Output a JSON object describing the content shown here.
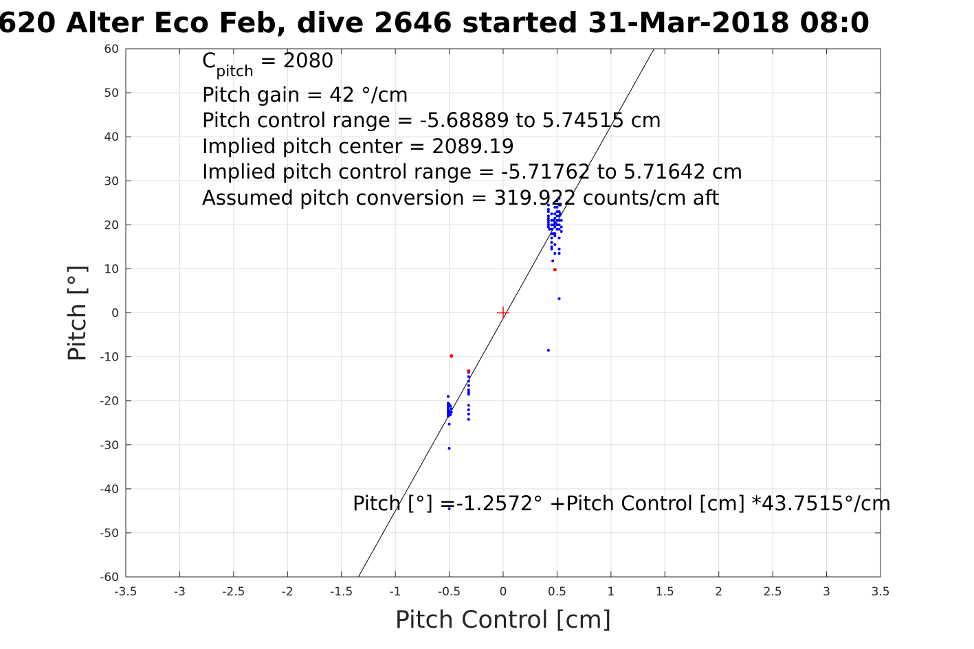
{
  "chart_data": {
    "type": "scatter",
    "title": "620 Alter Eco Feb, dive 2646 started 31-Mar-2018 08:0",
    "xlabel": "Pitch Control [cm]",
    "ylabel": "Pitch [°]",
    "xlim": [
      -3.5,
      3.5
    ],
    "ylim": [
      -60,
      60
    ],
    "xticks": [
      "-3.5",
      "-3",
      "-2.5",
      "-2",
      "-1.5",
      "-1",
      "-0.5",
      "0",
      "0.5",
      "1",
      "1.5",
      "2",
      "2.5",
      "3",
      "3.5"
    ],
    "yticks": [
      "60",
      "50",
      "40",
      "30",
      "20",
      "10",
      "0",
      "-10",
      "-20",
      "-30",
      "-40",
      "-50",
      "-60"
    ],
    "grid": true,
    "annotations": {
      "c_pitch_base": "C",
      "c_pitch_sub": "pitch",
      "c_pitch_value": " = 2080",
      "lines": [
        "Pitch gain = 42 °/cm",
        "Pitch control range = -5.68889 to 5.74515 cm",
        "Implied pitch center = 2089.19",
        "Implied pitch control range = -5.71762 to 5.71642 cm",
        "Assumed pitch conversion = 319.922 counts/cm aft"
      ],
      "fit_label": "Pitch [°] =-1.2572° +Pitch Control [cm] *43.7515°/cm"
    },
    "fit": {
      "intercept": -1.2572,
      "slope": 43.7515,
      "color": "#000000"
    },
    "center_marker": {
      "x": 0,
      "y": 0,
      "color": "#ff0000"
    },
    "series": [
      {
        "color": "#0000ff",
        "points": [
          [
            -0.51,
            -19.0
          ],
          [
            -0.51,
            -20.5
          ],
          [
            -0.51,
            -21.0
          ],
          [
            -0.51,
            -21.5
          ],
          [
            -0.51,
            -22.0
          ],
          [
            -0.51,
            -22.5
          ],
          [
            -0.51,
            -23.0
          ],
          [
            -0.51,
            -23.5
          ],
          [
            -0.5,
            -20.8
          ],
          [
            -0.5,
            -22.3
          ],
          [
            -0.49,
            -21.2
          ],
          [
            -0.49,
            -22.8
          ],
          [
            -0.49,
            -23.2
          ],
          [
            -0.48,
            -21.8
          ],
          [
            -0.48,
            -22.5
          ],
          [
            -0.5,
            -25.3
          ],
          [
            -0.5,
            -30.8
          ],
          [
            -0.5,
            -44.5
          ],
          [
            -0.32,
            -13.5
          ],
          [
            -0.32,
            -14.5
          ],
          [
            -0.32,
            -15.5
          ],
          [
            -0.32,
            -16.5
          ],
          [
            -0.32,
            -17.5
          ],
          [
            -0.32,
            -18.0
          ],
          [
            -0.32,
            -18.5
          ],
          [
            -0.32,
            -21.0
          ],
          [
            -0.32,
            -22.0
          ],
          [
            -0.32,
            -23.0
          ],
          [
            -0.32,
            -24.2
          ],
          [
            0.42,
            24.5
          ],
          [
            0.42,
            23.5
          ],
          [
            0.42,
            23.0
          ],
          [
            0.42,
            22.0
          ],
          [
            0.42,
            21.5
          ],
          [
            0.42,
            21.0
          ],
          [
            0.42,
            20.5
          ],
          [
            0.42,
            20.0
          ],
          [
            0.42,
            19.5
          ],
          [
            0.43,
            19.0
          ],
          [
            0.45,
            22.5
          ],
          [
            0.45,
            21.0
          ],
          [
            0.45,
            20.0
          ],
          [
            0.45,
            19.0
          ],
          [
            0.45,
            18.0
          ],
          [
            0.45,
            17.0
          ],
          [
            0.45,
            16.0
          ],
          [
            0.45,
            15.0
          ],
          [
            0.45,
            14.5
          ],
          [
            0.47,
            21.0
          ],
          [
            0.47,
            20.0
          ],
          [
            0.47,
            18.0
          ],
          [
            0.48,
            24.0
          ],
          [
            0.48,
            22.5
          ],
          [
            0.48,
            21.5
          ],
          [
            0.48,
            20.5
          ],
          [
            0.48,
            19.5
          ],
          [
            0.48,
            18.0
          ],
          [
            0.48,
            17.5
          ],
          [
            0.48,
            15.5
          ],
          [
            0.48,
            13.5
          ],
          [
            0.46,
            11.8
          ],
          [
            0.5,
            25.5
          ],
          [
            0.5,
            24.0
          ],
          [
            0.5,
            23.0
          ],
          [
            0.5,
            22.0
          ],
          [
            0.5,
            21.0
          ],
          [
            0.5,
            20.0
          ],
          [
            0.5,
            19.0
          ],
          [
            0.52,
            26.0
          ],
          [
            0.52,
            24.5
          ],
          [
            0.52,
            23.0
          ],
          [
            0.52,
            22.0
          ],
          [
            0.52,
            21.0
          ],
          [
            0.52,
            20.0
          ],
          [
            0.52,
            19.0
          ],
          [
            0.52,
            17.0
          ],
          [
            0.52,
            14.5
          ],
          [
            0.52,
            13.5
          ],
          [
            0.53,
            24.5
          ],
          [
            0.53,
            22.5
          ],
          [
            0.54,
            21.0
          ],
          [
            0.54,
            19.5
          ],
          [
            0.54,
            18.5
          ],
          [
            0.42,
            -8.5
          ],
          [
            0.52,
            3.2
          ]
        ]
      },
      {
        "color": "#ff0000",
        "points": [
          [
            -0.48,
            -9.8
          ],
          [
            -0.32,
            -13.2
          ],
          [
            0.48,
            9.8
          ]
        ]
      }
    ]
  }
}
